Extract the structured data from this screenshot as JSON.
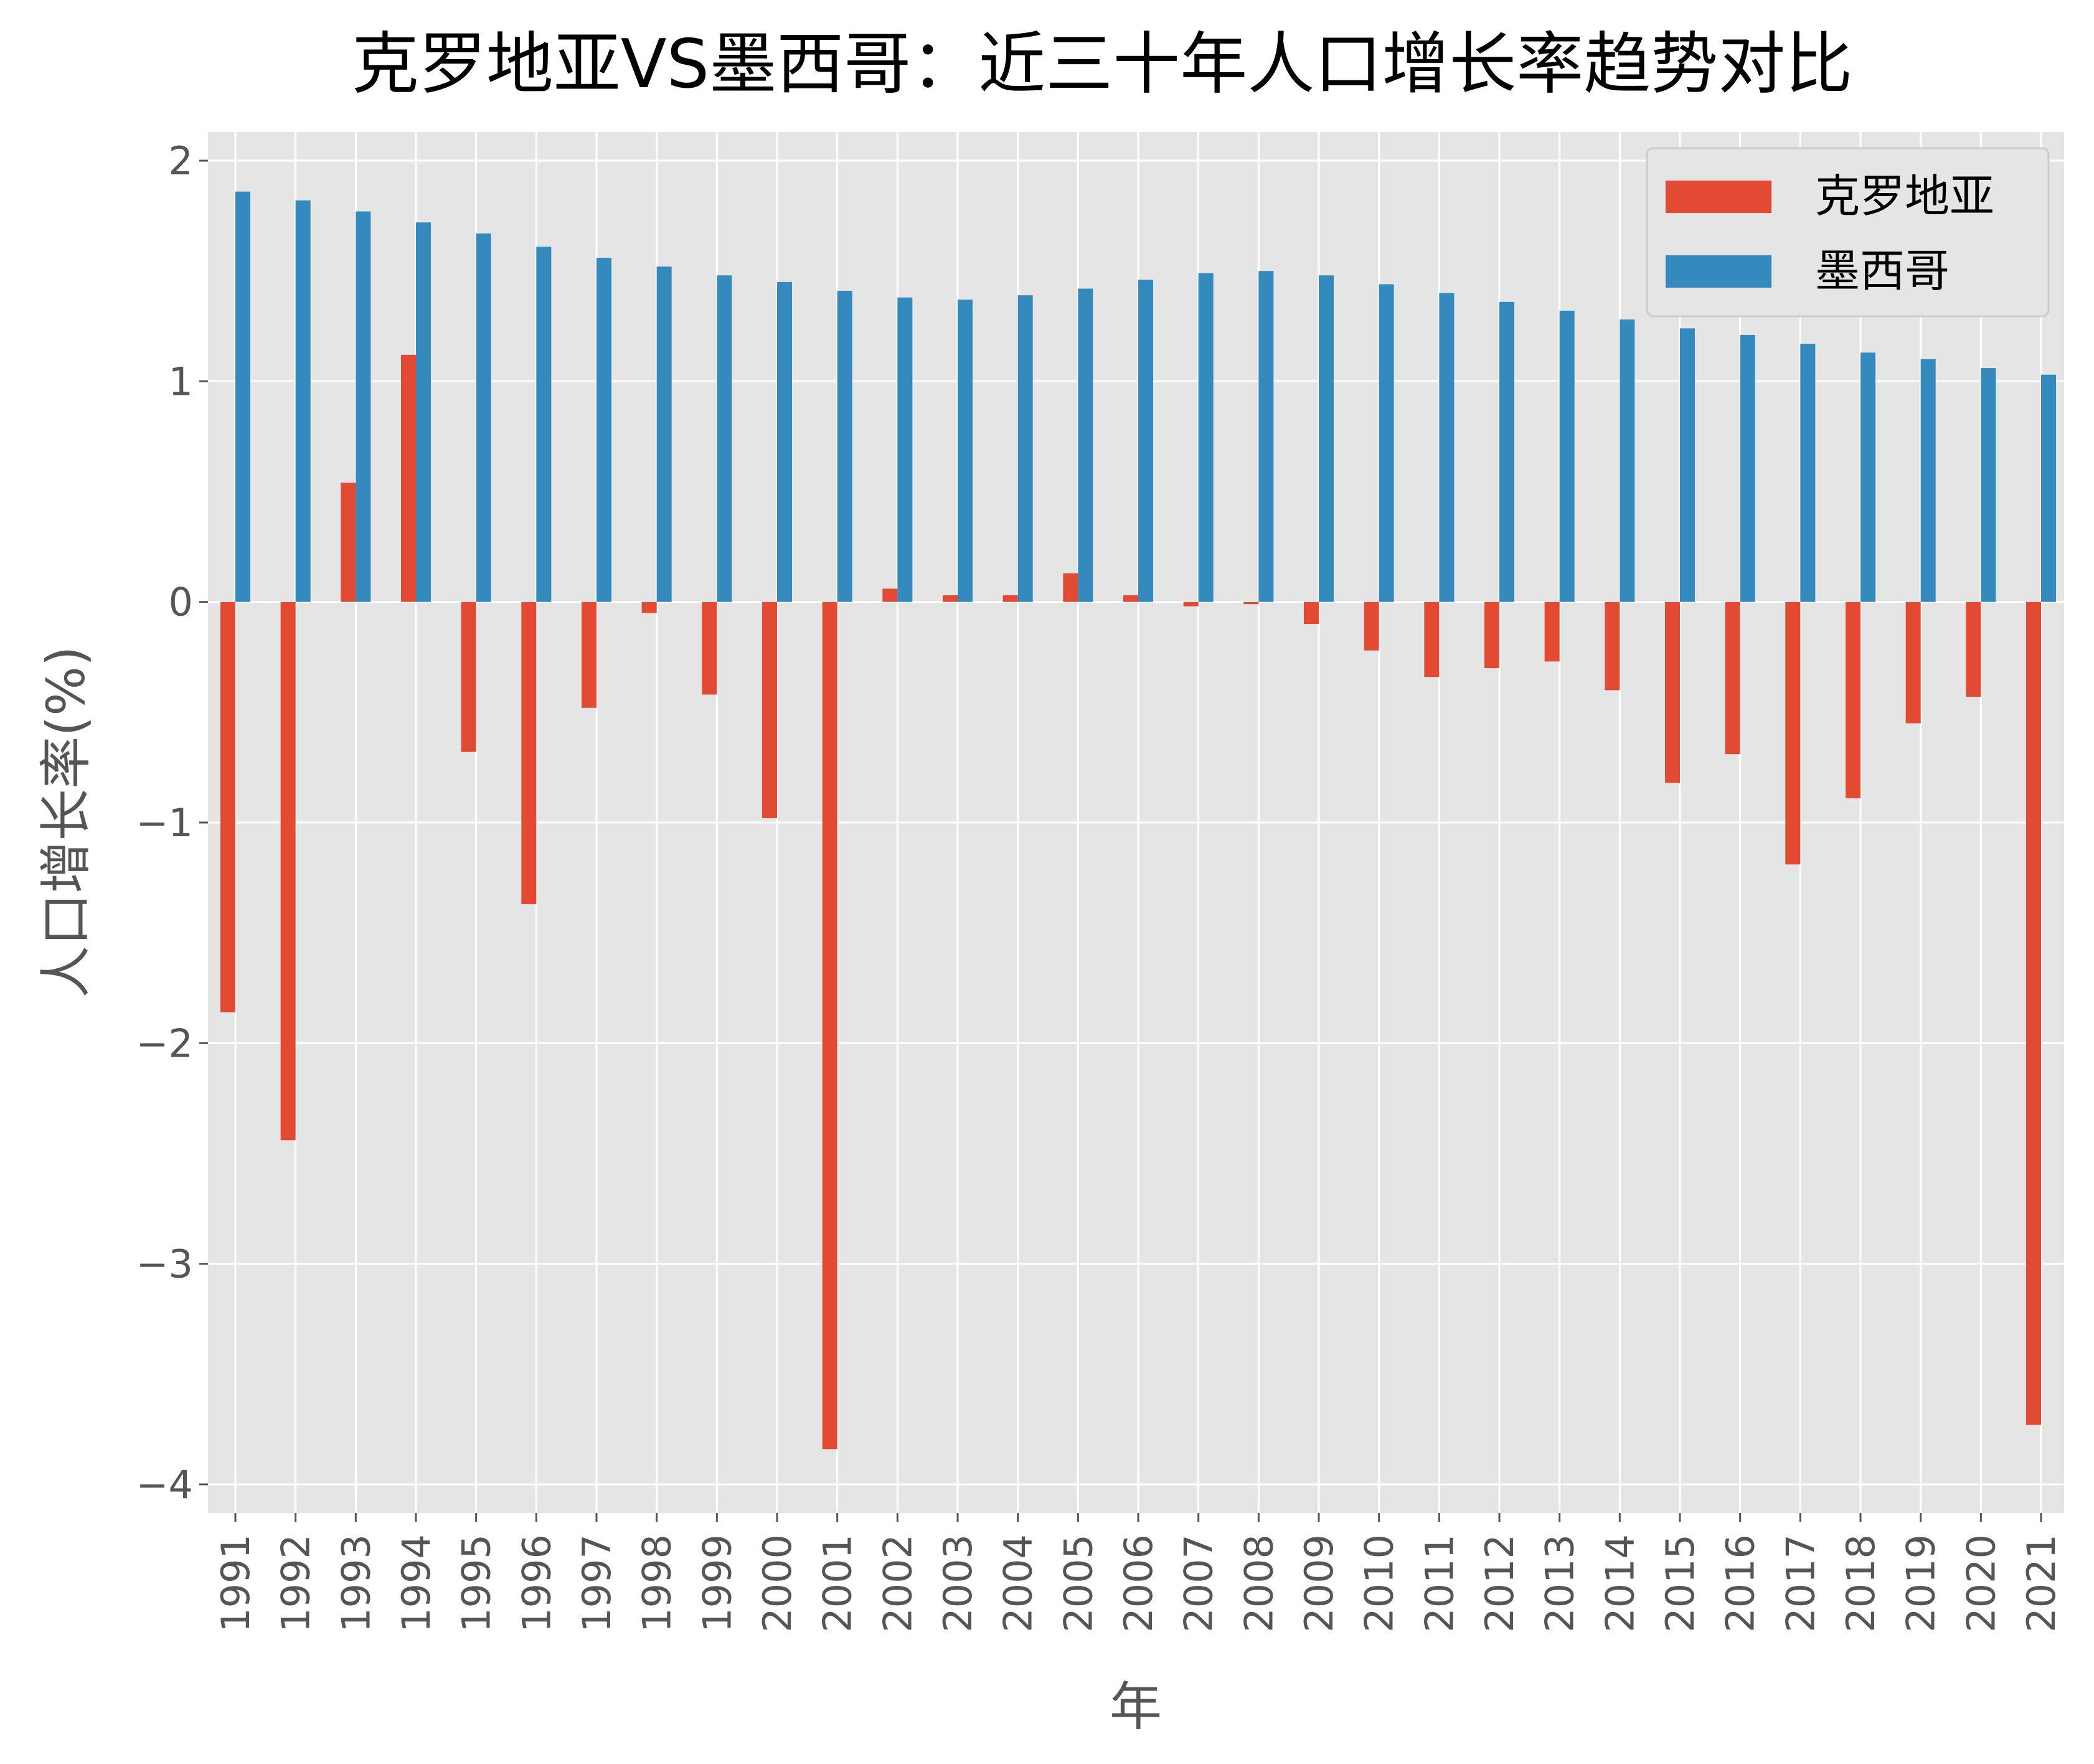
{
  "chart_data": {
    "type": "bar",
    "title": "克罗地亚VS墨西哥：近三十年人口增长率趋势对比",
    "xlabel": "年",
    "ylabel": "人口增长率(%)",
    "categories": [
      "1991",
      "1992",
      "1993",
      "1994",
      "1995",
      "1996",
      "1997",
      "1998",
      "1999",
      "2000",
      "2001",
      "2002",
      "2003",
      "2004",
      "2005",
      "2006",
      "2007",
      "2008",
      "2009",
      "2010",
      "2011",
      "2012",
      "2013",
      "2014",
      "2015",
      "2016",
      "2017",
      "2018",
      "2019",
      "2020",
      "2021"
    ],
    "series": [
      {
        "name": "克罗地亚",
        "color": "#E24A33",
        "values": [
          -1.86,
          -2.44,
          0.54,
          1.12,
          -0.68,
          -1.37,
          -0.48,
          -0.05,
          -0.42,
          -0.98,
          -3.84,
          0.06,
          0.03,
          0.03,
          0.13,
          0.03,
          -0.02,
          -0.01,
          -0.1,
          -0.22,
          -0.34,
          -0.3,
          -0.27,
          -0.4,
          -0.82,
          -0.69,
          -1.19,
          -0.89,
          -0.55,
          -0.43,
          -3.73
        ]
      },
      {
        "name": "墨西哥",
        "color": "#348ABD",
        "values": [
          1.86,
          1.82,
          1.77,
          1.72,
          1.67,
          1.61,
          1.56,
          1.52,
          1.48,
          1.45,
          1.41,
          1.38,
          1.37,
          1.39,
          1.42,
          1.46,
          1.49,
          1.5,
          1.48,
          1.44,
          1.4,
          1.36,
          1.32,
          1.28,
          1.24,
          1.21,
          1.17,
          1.13,
          1.1,
          1.06,
          1.03
        ]
      }
    ],
    "ylim": [
      -4.13,
      2.13
    ],
    "yticks": [
      -4,
      -3,
      -2,
      -1,
      0,
      1,
      2
    ],
    "ytick_labels": [
      "−4",
      "−3",
      "−2",
      "−1",
      "0",
      "1",
      "2"
    ],
    "grid": true,
    "legend_position": "top-right",
    "background": "#E5E5E5"
  }
}
